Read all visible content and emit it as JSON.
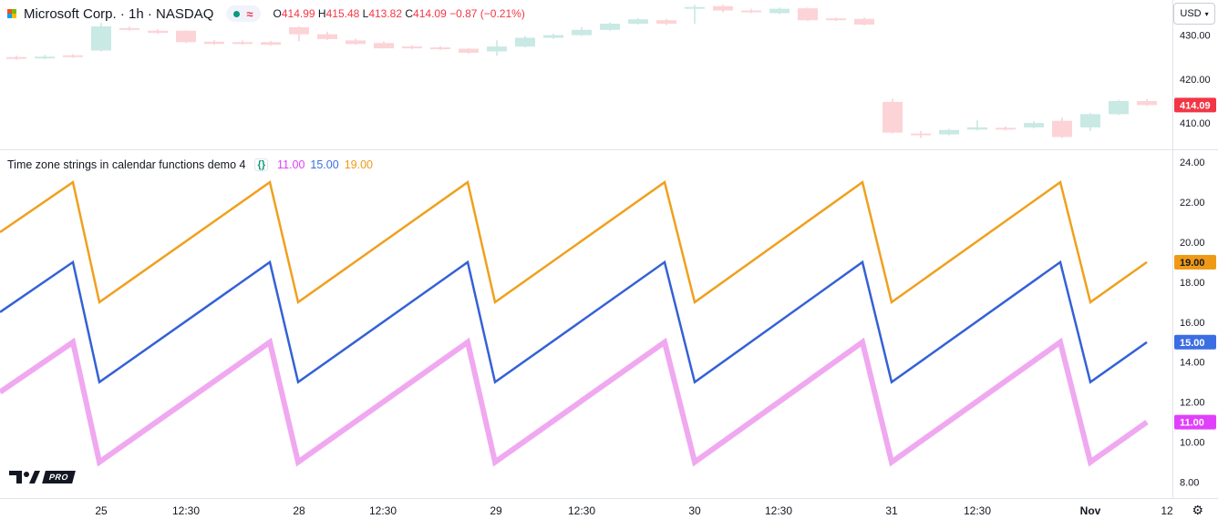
{
  "header": {
    "symbol": "Microsoft Corp. · 1h · NASDAQ",
    "approx_label": "≈",
    "ohlc": {
      "o_lab": "O",
      "o": "414.99",
      "h_lab": "H",
      "h": "415.48",
      "l_lab": "L",
      "l": "413.82",
      "c_lab": "C",
      "c": "414.09",
      "chg": "−0.87 (−0.21%)"
    }
  },
  "currency_button": "USD",
  "indicator": {
    "title": "Time zone strings in calendar functions demo 4",
    "braces": "{}",
    "values": [
      "11.00",
      "15.00",
      "19.00"
    ]
  },
  "colors": {
    "up": "#089981",
    "up_fill": "#c8e9e4",
    "down": "#f23645",
    "down_fill": "#fcd3d7",
    "orange": "#f0a01e",
    "blue": "#3461d6",
    "magenta": "#f0a8f0",
    "tag_orange": "#ef9a16",
    "tag_blue": "#3b6ee2",
    "tag_magenta": "#e040fb",
    "price_tag": "#f23645"
  },
  "chart_data": [
    {
      "type": "candlestick",
      "title": "Microsoft Corp. · 1h · NASDAQ",
      "y_ticks": [
        "430.00",
        "420.00",
        "410.00"
      ],
      "y_range": [
        404,
        438
      ],
      "last_price": "414.09",
      "candles": [
        {
          "o": 425.0,
          "c": 424.6,
          "h": 425.3,
          "l": 424.4
        },
        {
          "o": 424.7,
          "c": 425.1,
          "h": 425.5,
          "l": 424.5
        },
        {
          "o": 425.4,
          "c": 425.0,
          "h": 425.7,
          "l": 424.8
        },
        {
          "o": 426.5,
          "c": 432.0,
          "h": 432.8,
          "l": 426.3
        },
        {
          "o": 431.6,
          "c": 431.2,
          "h": 432.0,
          "l": 431.0
        },
        {
          "o": 431.0,
          "c": 430.5,
          "h": 431.4,
          "l": 430.3
        },
        {
          "o": 431.0,
          "c": 428.4,
          "h": 431.1,
          "l": 428.2
        },
        {
          "o": 428.5,
          "c": 428.0,
          "h": 428.9,
          "l": 427.8
        },
        {
          "o": 428.4,
          "c": 428.0,
          "h": 428.8,
          "l": 427.8
        },
        {
          "o": 428.4,
          "c": 427.8,
          "h": 428.7,
          "l": 427.6
        },
        {
          "o": 431.8,
          "c": 430.2,
          "h": 432.0,
          "l": 428.6
        },
        {
          "o": 430.2,
          "c": 429.1,
          "h": 430.8,
          "l": 428.9
        },
        {
          "o": 428.8,
          "c": 428.0,
          "h": 429.2,
          "l": 427.8
        },
        {
          "o": 428.2,
          "c": 427.0,
          "h": 428.6,
          "l": 426.9
        },
        {
          "o": 427.4,
          "c": 427.0,
          "h": 427.7,
          "l": 426.8
        },
        {
          "o": 427.2,
          "c": 426.8,
          "h": 427.5,
          "l": 426.6
        },
        {
          "o": 426.9,
          "c": 426.0,
          "h": 427.1,
          "l": 425.8
        },
        {
          "o": 426.3,
          "c": 427.4,
          "h": 428.8,
          "l": 425.3
        },
        {
          "o": 427.4,
          "c": 429.4,
          "h": 429.8,
          "l": 427.2
        },
        {
          "o": 429.4,
          "c": 430.0,
          "h": 430.3,
          "l": 429.2
        },
        {
          "o": 430.0,
          "c": 431.2,
          "h": 431.8,
          "l": 429.8
        },
        {
          "o": 431.2,
          "c": 432.6,
          "h": 432.9,
          "l": 431.0
        },
        {
          "o": 432.6,
          "c": 433.6,
          "h": 433.9,
          "l": 432.4
        },
        {
          "o": 433.4,
          "c": 432.6,
          "h": 433.7,
          "l": 432.3
        },
        {
          "o": 436.0,
          "c": 436.4,
          "h": 436.9,
          "l": 432.6
        },
        {
          "o": 436.6,
          "c": 435.6,
          "h": 436.9,
          "l": 435.2
        },
        {
          "o": 435.6,
          "c": 435.2,
          "h": 436.0,
          "l": 435.0
        },
        {
          "o": 435.0,
          "c": 436.0,
          "h": 436.3,
          "l": 434.8
        },
        {
          "o": 436.1,
          "c": 433.4,
          "h": 436.3,
          "l": 433.2
        },
        {
          "o": 433.8,
          "c": 433.4,
          "h": 434.0,
          "l": 433.2
        },
        {
          "o": 433.7,
          "c": 432.4,
          "h": 434.0,
          "l": 432.2
        },
        {
          "o": 414.8,
          "c": 407.8,
          "h": 415.5,
          "l": 407.6
        },
        {
          "o": 407.6,
          "c": 407.2,
          "h": 408.2,
          "l": 406.6
        },
        {
          "o": 407.4,
          "c": 408.4,
          "h": 408.7,
          "l": 407.2
        },
        {
          "o": 408.5,
          "c": 409.0,
          "h": 410.6,
          "l": 408.3
        },
        {
          "o": 408.9,
          "c": 408.5,
          "h": 409.2,
          "l": 408.3
        },
        {
          "o": 409.0,
          "c": 410.0,
          "h": 410.4,
          "l": 408.8
        },
        {
          "o": 410.5,
          "c": 406.8,
          "h": 411.2,
          "l": 406.6
        },
        {
          "o": 409.0,
          "c": 412.0,
          "h": 412.3,
          "l": 408.2
        },
        {
          "o": 412.0,
          "c": 415.0,
          "h": 415.3,
          "l": 411.8
        },
        {
          "o": 414.99,
          "c": 414.09,
          "h": 415.48,
          "l": 413.82
        }
      ]
    },
    {
      "type": "line",
      "title": "Time zone strings in calendar functions demo 4",
      "y_ticks": [
        "24.00",
        "22.00",
        "20.00",
        "18.00",
        "16.00",
        "14.00",
        "12.00",
        "10.00",
        "8.00"
      ],
      "y_range": [
        7.2,
        24.6
      ],
      "x_tick_labels": [
        "25",
        "12:30",
        "28",
        "12:30",
        "29",
        "12:30",
        "30",
        "12:30",
        "31",
        "12:30",
        "Nov",
        "12"
      ],
      "series": [
        {
          "values": [
            20.5,
            23,
            17,
            23,
            17,
            23,
            17,
            23,
            17,
            23,
            17,
            23,
            17,
            19
          ],
          "tag": "19.00"
        },
        {
          "values": [
            16.5,
            19,
            13,
            19,
            13,
            19,
            13,
            19,
            13,
            19,
            13,
            19,
            13,
            15
          ],
          "tag": "15.00"
        },
        {
          "values": [
            12.5,
            15,
            9,
            15,
            9,
            15,
            9,
            15,
            9,
            15,
            9,
            15,
            9,
            11
          ],
          "tag": "11.00"
        }
      ]
    }
  ],
  "branding": {
    "pro_label": "PRO"
  }
}
